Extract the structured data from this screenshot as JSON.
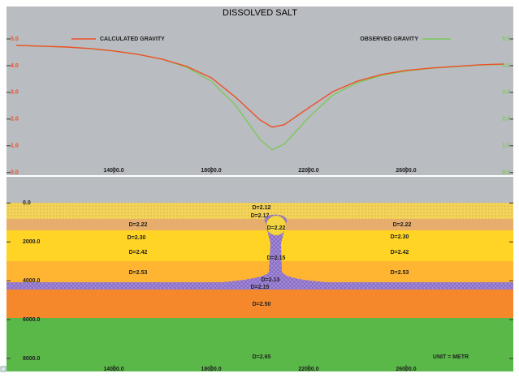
{
  "chart_data": {
    "type": "line",
    "title": "DISSOLVED SALT",
    "x": [
      10000,
      11000,
      12000,
      13000,
      14000,
      15000,
      16000,
      17000,
      18000,
      19000,
      20000,
      20500,
      21000,
      22000,
      23000,
      24000,
      25000,
      26000,
      27000,
      28000,
      29000,
      30000
    ],
    "series": [
      {
        "name": "CALCULATED GRAVITY",
        "color": "#f0502a",
        "values": [
          4.76,
          4.73,
          4.7,
          4.64,
          4.55,
          4.42,
          4.24,
          3.97,
          3.55,
          2.82,
          1.97,
          1.7,
          1.79,
          2.42,
          3.03,
          3.42,
          3.67,
          3.82,
          3.91,
          3.97,
          4.03,
          4.06
        ]
      },
      {
        "name": "OBSERVED GRAVITY",
        "color": "#7dc85a",
        "values": [
          4.76,
          4.73,
          4.7,
          4.64,
          4.55,
          4.42,
          4.24,
          3.94,
          3.42,
          2.52,
          1.24,
          0.85,
          1.06,
          2.06,
          2.91,
          3.36,
          3.64,
          3.8,
          3.9,
          3.96,
          4.02,
          4.05
        ]
      }
    ],
    "xlim": [
      9600,
      30400
    ],
    "xticks": [
      {
        "value": 14000,
        "label": "14000.0"
      },
      {
        "value": 18000,
        "label": "18000.0"
      },
      {
        "value": 22000,
        "label": "22000.0"
      },
      {
        "value": 26000,
        "label": "26000.0"
      }
    ],
    "ylim": [
      -0.1,
      5.85
    ],
    "yticks": [
      {
        "value": 0,
        "label": "0.0"
      },
      {
        "value": 1,
        "label": "1.0"
      },
      {
        "value": 2,
        "label": "2.0"
      },
      {
        "value": 3,
        "label": "3.0"
      },
      {
        "value": 4,
        "label": "4.0"
      },
      {
        "value": 5,
        "label": "5.0"
      }
    ],
    "grid": false
  },
  "section": {
    "ylim": [
      8670,
      -1350
    ],
    "yticks": [
      {
        "value": 0,
        "label": "0.0"
      },
      {
        "value": 2000,
        "label": "2000.0"
      },
      {
        "value": 4000,
        "label": "4000.0"
      },
      {
        "value": 6000,
        "label": "6000.0"
      },
      {
        "value": 8000,
        "label": "8000.0"
      }
    ],
    "density_labels": [
      "D=2.22",
      "D=2.30",
      "D=2.42",
      "D=2.53",
      "D=2.22",
      "D=2.30",
      "D=2.42",
      "D=2.53",
      "D=2.12",
      "D=2.17",
      "D=2.22",
      "D=2.15",
      "D=2.13",
      "D=2.15",
      "D=2.50",
      "D=2.65"
    ],
    "unit": "UNIT = METR"
  }
}
